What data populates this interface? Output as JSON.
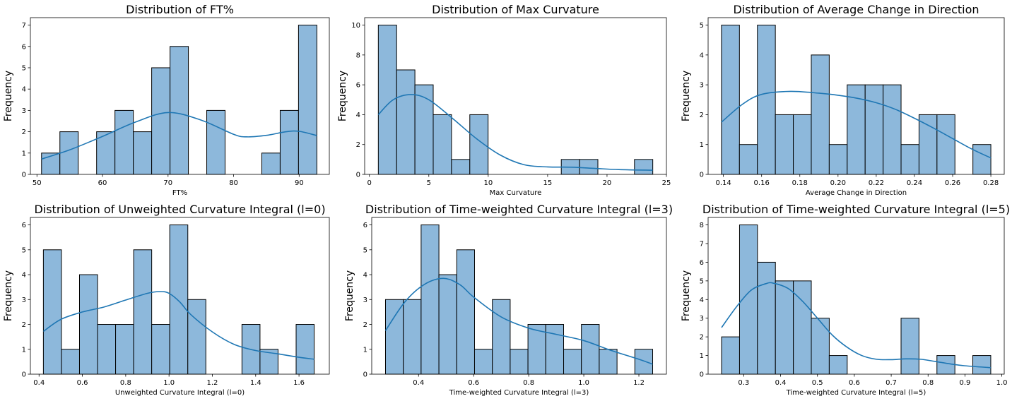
{
  "colors": {
    "bar_fill": "#8db8db",
    "bar_edge": "#000000",
    "kde_line": "#1f77b4",
    "axes": "#000000"
  },
  "chart_data": [
    {
      "type": "bar",
      "title": "Distribution of FT%",
      "xlabel": "FT%",
      "ylabel": "Frequency",
      "xlim": [
        49.0,
        94.6
      ],
      "ylim": [
        0,
        7.35
      ],
      "xticks": [
        50,
        60,
        70,
        80,
        90
      ],
      "yticks": [
        0,
        1,
        2,
        3,
        4,
        5,
        6,
        7
      ],
      "bin_edges": [
        50.7,
        53.5,
        56.3,
        59.1,
        61.9,
        64.7,
        67.5,
        70.3,
        73.1,
        75.9,
        78.7,
        81.5,
        84.3,
        87.1,
        89.9,
        92.7
      ],
      "counts": [
        1,
        2,
        0,
        2,
        3,
        2,
        5,
        6,
        0,
        3,
        0,
        0,
        1,
        3,
        7
      ],
      "kde": {
        "x": [
          50.7,
          55,
          60,
          65,
          70,
          75,
          80,
          82,
          85,
          88,
          90,
          92.7
        ],
        "y": [
          0.72,
          1.15,
          1.78,
          2.45,
          2.9,
          2.55,
          1.88,
          1.76,
          1.83,
          2.0,
          2.02,
          1.82
        ]
      },
      "grid": false
    },
    {
      "type": "bar",
      "title": "Distribution of Max Curvature",
      "xlabel": "Max Curvature",
      "ylabel": "Frequency",
      "xlim": [
        -0.4,
        25.0
      ],
      "ylim": [
        0,
        10.5
      ],
      "xticks": [
        0,
        5,
        10,
        15,
        20,
        25
      ],
      "yticks": [
        0,
        2,
        4,
        6,
        8,
        10
      ],
      "bin_edges": [
        0.75,
        2.29,
        3.83,
        5.37,
        6.91,
        8.45,
        9.99,
        11.53,
        13.07,
        14.61,
        16.15,
        17.69,
        19.23,
        20.77,
        22.31,
        23.85
      ],
      "counts": [
        10,
        7,
        6,
        4,
        1,
        4,
        0,
        0,
        0,
        0,
        1,
        1,
        0,
        0,
        1
      ],
      "kde": {
        "x": [
          0.75,
          2,
          3.5,
          5,
          7,
          9,
          11,
          13,
          15,
          17,
          19,
          21,
          23.85
        ],
        "y": [
          4.0,
          5.0,
          5.35,
          5.0,
          3.75,
          2.4,
          1.3,
          0.65,
          0.5,
          0.48,
          0.4,
          0.32,
          0.28
        ]
      },
      "grid": false
    },
    {
      "type": "bar",
      "title": "Distribution of Average Change in Direction",
      "xlabel": "Average Change in Direction",
      "ylabel": "Frequency",
      "xlim": [
        0.132,
        0.287
      ],
      "ylim": [
        0,
        5.25
      ],
      "xticks": [
        0.14,
        0.16,
        0.18,
        0.2,
        0.22,
        0.24,
        0.26,
        0.28
      ],
      "xticklabels": [
        "0.14",
        "0.16",
        "0.18",
        "0.20",
        "0.22",
        "0.24",
        "0.26",
        "0.28"
      ],
      "yticks": [
        0,
        1,
        2,
        3,
        4,
        5
      ],
      "bin_edges": [
        0.139,
        0.1484,
        0.1578,
        0.1672,
        0.1766,
        0.186,
        0.1954,
        0.2048,
        0.2142,
        0.2236,
        0.233,
        0.2424,
        0.2518,
        0.2612,
        0.2706,
        0.28
      ],
      "counts": [
        5,
        1,
        5,
        2,
        2,
        4,
        1,
        3,
        3,
        3,
        1,
        2,
        2,
        0,
        1
      ],
      "kde": {
        "x": [
          0.139,
          0.15,
          0.16,
          0.175,
          0.19,
          0.2,
          0.21,
          0.22,
          0.23,
          0.24,
          0.25,
          0.26,
          0.27,
          0.28
        ],
        "y": [
          1.75,
          2.35,
          2.68,
          2.78,
          2.72,
          2.65,
          2.55,
          2.4,
          2.18,
          1.88,
          1.55,
          1.2,
          0.85,
          0.55
        ]
      },
      "grid": false
    },
    {
      "type": "bar",
      "title": "Distribution of Unweighted Curvature Integral (l=0)",
      "xlabel": "Unweighted Curvature Integral (l=0)",
      "ylabel": "Frequency",
      "xlim": [
        0.36,
        1.74
      ],
      "ylim": [
        0,
        6.3
      ],
      "xticks": [
        0.4,
        0.6,
        0.8,
        1.0,
        1.2,
        1.4,
        1.6
      ],
      "xticklabels": [
        "0.4",
        "0.6",
        "0.8",
        "1.0",
        "1.2",
        "1.4",
        "1.6"
      ],
      "yticks": [
        0,
        1,
        2,
        3,
        4,
        5,
        6
      ],
      "bin_edges": [
        0.42,
        0.5033,
        0.5867,
        0.67,
        0.7533,
        0.8367,
        0.92,
        1.0033,
        1.0867,
        1.17,
        1.2533,
        1.3367,
        1.42,
        1.5033,
        1.5867,
        1.67
      ],
      "counts": [
        5,
        1,
        4,
        2,
        2,
        5,
        2,
        6,
        3,
        0,
        0,
        2,
        1,
        0,
        2
      ],
      "kde": {
        "x": [
          0.42,
          0.5,
          0.6,
          0.7,
          0.8,
          0.9,
          0.96,
          1.0,
          1.05,
          1.1,
          1.2,
          1.3,
          1.4,
          1.5,
          1.6,
          1.67
        ],
        "y": [
          1.72,
          2.2,
          2.5,
          2.7,
          2.98,
          3.25,
          3.32,
          3.25,
          2.9,
          2.4,
          1.7,
          1.2,
          0.95,
          0.82,
          0.68,
          0.6
        ]
      },
      "grid": false
    },
    {
      "type": "bar",
      "title": "Distribution of Time-weighted Curvature Integral (l=3)",
      "xlabel": "Time-weighted Curvature Integral (l=3)",
      "ylabel": "Frequency",
      "xlim": [
        0.23,
        1.3
      ],
      "ylim": [
        0,
        6.3
      ],
      "xticks": [
        0.4,
        0.6,
        0.8,
        1.0,
        1.2
      ],
      "xticklabels": [
        "0.4",
        "0.6",
        "0.8",
        "1.0",
        "1.2"
      ],
      "yticks": [
        0,
        1,
        2,
        3,
        4,
        5,
        6
      ],
      "bin_edges": [
        0.28,
        0.3447,
        0.4093,
        0.474,
        0.5387,
        0.6033,
        0.668,
        0.7327,
        0.7973,
        0.862,
        0.9267,
        0.9913,
        1.056,
        1.1207,
        1.1853,
        1.25
      ],
      "counts": [
        3,
        3,
        6,
        4,
        5,
        1,
        3,
        1,
        2,
        2,
        1,
        2,
        1,
        0,
        1
      ],
      "kde": {
        "x": [
          0.28,
          0.35,
          0.42,
          0.49,
          0.55,
          0.6,
          0.7,
          0.8,
          0.9,
          1.0,
          1.1,
          1.2,
          1.25
        ],
        "y": [
          1.75,
          2.9,
          3.6,
          3.85,
          3.6,
          3.1,
          2.3,
          1.85,
          1.6,
          1.35,
          0.95,
          0.6,
          0.4
        ]
      },
      "grid": false
    },
    {
      "type": "bar",
      "title": "Distribution of Time-weighted Curvature Integral (l=5)",
      "xlabel": "Time-weighted Curvature Integral (l=5)",
      "ylabel": "Frequency",
      "xlim": [
        0.2035,
        1.0065
      ],
      "ylim": [
        0,
        8.4
      ],
      "xticks": [
        0.3,
        0.4,
        0.5,
        0.6,
        0.7,
        0.8,
        0.9,
        1.0
      ],
      "xticklabels": [
        "0.3",
        "0.4",
        "0.5",
        "0.6",
        "0.7",
        "0.8",
        "0.9",
        "1.0"
      ],
      "yticks": [
        0,
        1,
        2,
        3,
        4,
        5,
        6,
        7,
        8
      ],
      "bin_edges": [
        0.24,
        0.2887,
        0.3373,
        0.386,
        0.4347,
        0.4833,
        0.532,
        0.5807,
        0.6293,
        0.678,
        0.7267,
        0.7753,
        0.824,
        0.8727,
        0.9213,
        0.97
      ],
      "counts": [
        2,
        8,
        6,
        5,
        5,
        3,
        1,
        0,
        0,
        0,
        3,
        0,
        1,
        0,
        1
      ],
      "kde": {
        "x": [
          0.24,
          0.28,
          0.32,
          0.36,
          0.38,
          0.42,
          0.46,
          0.5,
          0.54,
          0.58,
          0.62,
          0.66,
          0.7,
          0.74,
          0.78,
          0.82,
          0.86,
          0.9,
          0.97
        ],
        "y": [
          2.5,
          3.6,
          4.5,
          4.85,
          4.88,
          4.6,
          3.9,
          3.0,
          2.1,
          1.45,
          1.0,
          0.8,
          0.78,
          0.82,
          0.8,
          0.68,
          0.55,
          0.45,
          0.35
        ]
      },
      "grid": false
    }
  ]
}
